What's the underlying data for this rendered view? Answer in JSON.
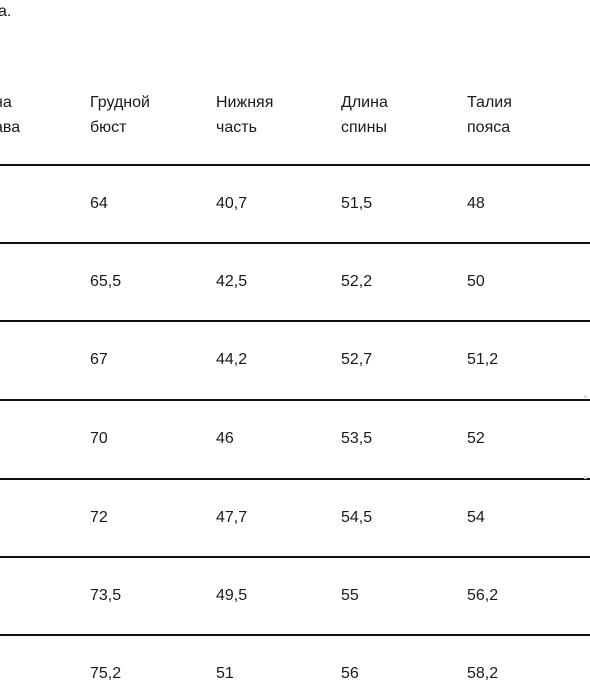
{
  "top_fragment": "а.",
  "table": {
    "headers": [
      [
        "на",
        "ава"
      ],
      [
        "Грудной",
        "бюст"
      ],
      [
        "Нижняя",
        "часть"
      ],
      [
        "Длина",
        "спины"
      ],
      [
        "Талия",
        "пояса"
      ]
    ],
    "rows": [
      [
        "",
        "64",
        "40,7",
        "51,5",
        "48"
      ],
      [
        "",
        "65,5",
        "42,5",
        "52,2",
        "50"
      ],
      [
        "",
        "67",
        "44,2",
        "52,7",
        "51,2"
      ],
      [
        "",
        "70",
        "46",
        "53,5",
        "52"
      ],
      [
        "",
        "72",
        "47,7",
        "54,5",
        "54"
      ],
      [
        "",
        "73,5",
        "49,5",
        "55",
        "56,2"
      ],
      [
        "",
        "75,2",
        "51",
        "56",
        "58,2"
      ]
    ]
  }
}
